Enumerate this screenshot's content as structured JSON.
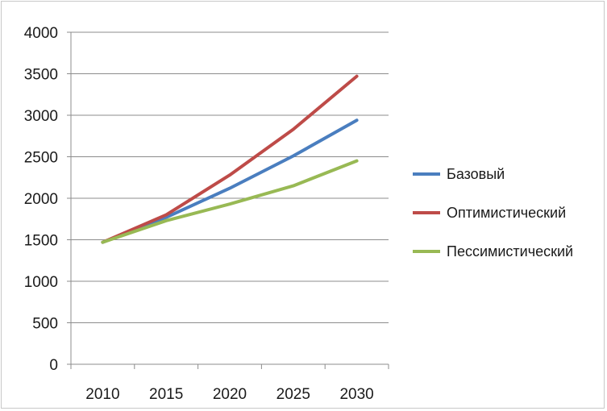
{
  "chart_data": {
    "type": "line",
    "x": [
      "2010",
      "2015",
      "2020",
      "2025",
      "2030"
    ],
    "ylim": [
      0,
      4000
    ],
    "yticks": [
      0,
      500,
      1000,
      1500,
      2000,
      2500,
      3000,
      3500,
      4000
    ],
    "grid": "horizontal",
    "legend_position": "right",
    "series": [
      {
        "name": "Базовый",
        "color": "#4a7ebf",
        "values": [
          1470,
          1770,
          2120,
          2510,
          2940
        ]
      },
      {
        "name": "Оптимистический",
        "color": "#be4b48",
        "values": [
          1470,
          1800,
          2280,
          2830,
          3470
        ]
      },
      {
        "name": "Пессимистический",
        "color": "#98b954",
        "values": [
          1470,
          1730,
          1930,
          2150,
          2450
        ]
      }
    ]
  }
}
